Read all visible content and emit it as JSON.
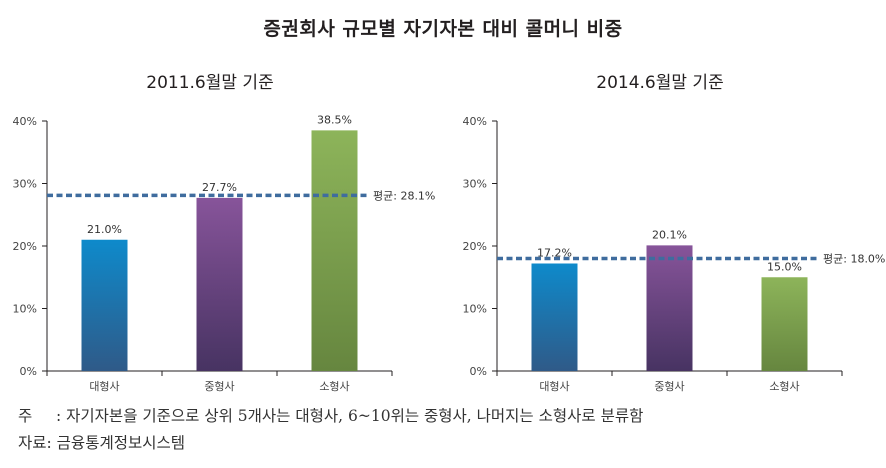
{
  "title": "증권회사 규모별 자기자본 대비 콜머니 비중",
  "colors": {
    "large_top": "#0e8acb",
    "large_bottom": "#2f5a88",
    "medium_top": "#87549a",
    "medium_bottom": "#473362",
    "small_top": "#8db45a",
    "small_bottom": "#66863f",
    "average_line": "#3f6c9e",
    "axis": "#231f20"
  },
  "chart_data": [
    {
      "type": "bar",
      "title": "2011.6월말 기준",
      "categories": [
        "대형사",
        "중형사",
        "소형사"
      ],
      "values": [
        21.0,
        27.7,
        38.5
      ],
      "value_labels": [
        "21.0%",
        "27.7%",
        "38.5%"
      ],
      "average": 28.1,
      "average_label": "평균: 28.1%",
      "ylim": [
        0,
        40
      ],
      "yticks": [
        0,
        10,
        20,
        30,
        40
      ],
      "ytick_labels": [
        "0%",
        "10%",
        "20%",
        "30%",
        "40%"
      ],
      "xlabel": "",
      "ylabel": "",
      "grid": false
    },
    {
      "type": "bar",
      "title": "2014.6월말 기준",
      "categories": [
        "대형사",
        "중형사",
        "소형사"
      ],
      "values": [
        17.2,
        20.1,
        15.0
      ],
      "value_labels": [
        "17.2%",
        "20.1%",
        "15.0%"
      ],
      "average": 18.0,
      "average_label": "평균: 18.0%",
      "ylim": [
        0,
        40
      ],
      "yticks": [
        0,
        10,
        20,
        30,
        40
      ],
      "ytick_labels": [
        "0%",
        "10%",
        "20%",
        "30%",
        "40%"
      ],
      "xlabel": "",
      "ylabel": "",
      "grid": false
    }
  ],
  "notes": {
    "note_prefix": "주",
    "note_text": ": 자기자본을 기준으로 상위 5개사는 대형사, 6~10위는 중형사, 나머지는 소형사로 분류함",
    "source_text": "자료: 금융통계정보시스템"
  }
}
